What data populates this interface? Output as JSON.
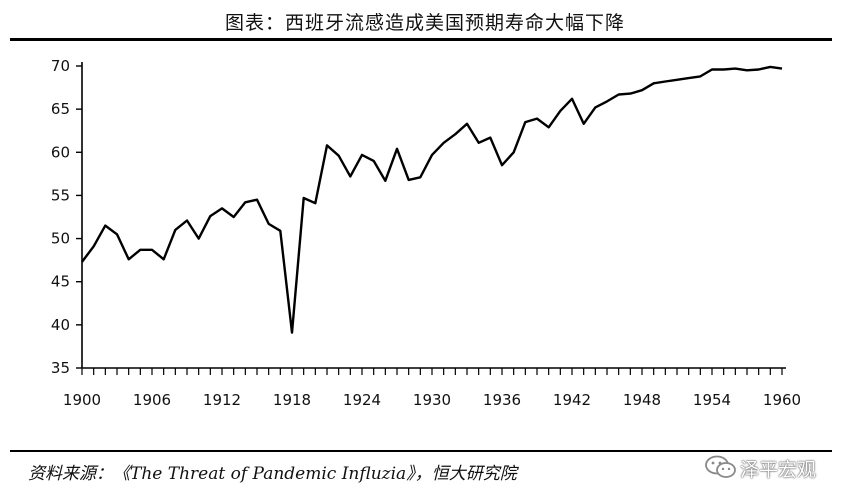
{
  "header": {
    "title": "图表：西班牙流感造成美国预期寿命大幅下降"
  },
  "footer": {
    "source": "资料来源：《The Threat of Pandemic Influzia》，恒大研究院",
    "brand": "泽平宏观",
    "brand_icon": "wechat-icon"
  },
  "chart_data": {
    "type": "line",
    "title": "",
    "xlabel": "",
    "ylabel": "",
    "xlim": [
      1900,
      1960
    ],
    "ylim": [
      35,
      70
    ],
    "x_ticks": [
      1900,
      1906,
      1912,
      1918,
      1924,
      1930,
      1936,
      1942,
      1948,
      1954,
      1960
    ],
    "x_tick_labels": [
      "1900",
      "1906",
      "1912",
      "1918",
      "1924",
      "1930",
      "1936",
      "1942",
      "1948",
      "1954",
      "1960"
    ],
    "y_ticks": [
      35,
      40,
      45,
      50,
      55,
      60,
      65,
      70
    ],
    "y_tick_labels": [
      "35",
      "40",
      "45",
      "50",
      "55",
      "60",
      "65",
      "70"
    ],
    "grid": false,
    "line_color": "#000000",
    "series": [
      {
        "x": [
          1900,
          1901,
          1902,
          1903,
          1904,
          1905,
          1906,
          1907,
          1908,
          1909,
          1910,
          1911,
          1912,
          1913,
          1914,
          1915,
          1916,
          1917,
          1918,
          1919,
          1920,
          1921,
          1922,
          1923,
          1924,
          1925,
          1926,
          1927,
          1928,
          1929,
          1930,
          1931,
          1932,
          1933,
          1934,
          1935,
          1936,
          1937,
          1938,
          1939,
          1940,
          1941,
          1942,
          1943,
          1944,
          1945,
          1946,
          1947,
          1948,
          1949,
          1950,
          1951,
          1952,
          1953,
          1954,
          1955,
          1956,
          1957,
          1958,
          1959,
          1960
        ],
        "y": [
          47.3,
          49.1,
          51.5,
          50.5,
          47.6,
          48.7,
          48.7,
          47.6,
          51.0,
          52.1,
          50.0,
          52.6,
          53.5,
          52.5,
          54.2,
          54.5,
          51.7,
          50.9,
          39.1,
          54.7,
          54.1,
          60.8,
          59.6,
          57.2,
          59.7,
          59.0,
          56.7,
          60.4,
          56.8,
          57.1,
          59.7,
          61.1,
          62.1,
          63.3,
          61.1,
          61.7,
          58.5,
          60.0,
          63.5,
          63.9,
          62.9,
          64.8,
          66.2,
          63.3,
          65.2,
          65.9,
          66.7,
          66.8,
          67.2,
          68.0,
          68.2,
          68.4,
          68.6,
          68.8,
          69.6,
          69.6,
          69.7,
          69.5,
          69.6,
          69.9,
          69.7
        ]
      }
    ]
  }
}
